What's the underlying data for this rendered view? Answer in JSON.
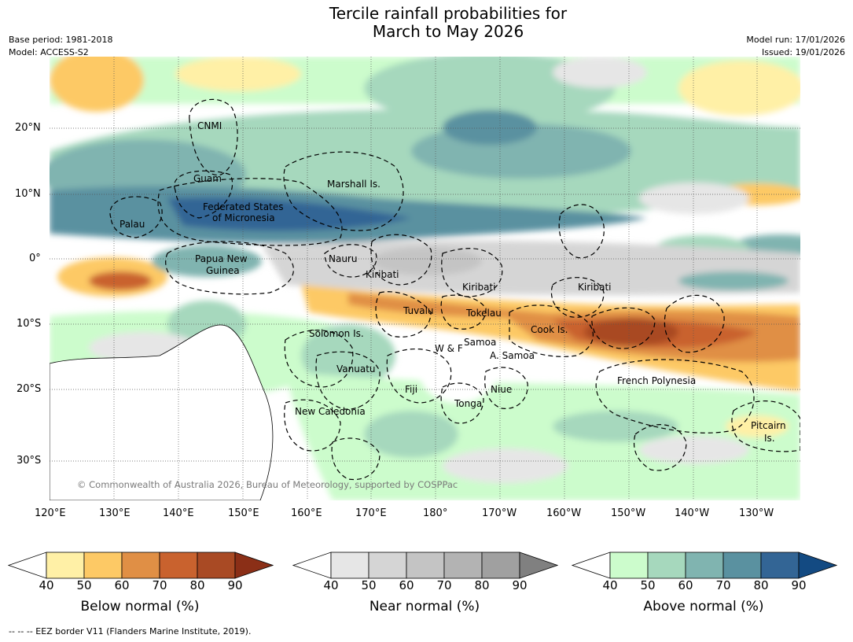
{
  "header": {
    "title_line1": "Tercile rainfall probabilities for",
    "title_line2": "March to May 2026",
    "base_period": "Base period: 1981-2018",
    "model": "Model: ACCESS-S2",
    "model_run": "Model run: 17/01/2026",
    "issued": "Issued: 19/01/2026"
  },
  "map": {
    "lat_labels": [
      "20°N",
      "10°N",
      "0°",
      "10°S",
      "20°S",
      "30°S"
    ],
    "lon_labels": [
      "120°E",
      "130°E",
      "140°E",
      "150°E",
      "160°E",
      "170°E",
      "180°",
      "170°W",
      "160°W",
      "150°W",
      "140°W",
      "130°W"
    ],
    "places": [
      "CNMI",
      "Guam",
      "Marshall Is.",
      "Palau",
      "Federated States",
      "of Micronesia",
      "Papua New",
      "Guinea",
      "Nauru",
      "Kiribati",
      "Kiribati",
      "Kiribati",
      "Tuvalu",
      "Tokelau",
      "Cook Is.",
      "Solomon Is.",
      "W & F",
      "Samoa",
      "A. Samoa",
      "Vanuatu",
      "Fiji",
      "Niue",
      "French Polynesia",
      "Tonga",
      "New Caledonia",
      "Pitcairn",
      "Is."
    ],
    "copyright": "© Commonwealth of Australia 2026, Bureau of Meteorology, supported by COSPPac"
  },
  "colorbars": [
    {
      "label": "Below normal (%)",
      "ticks": [
        "40",
        "50",
        "60",
        "70",
        "80",
        "90"
      ],
      "colors": [
        "#ffffff",
        "#fff0a6",
        "#fdc965",
        "#e08f45",
        "#c9622e",
        "#a94a24",
        "#8b2f17"
      ]
    },
    {
      "label": "Near normal (%)",
      "ticks": [
        "40",
        "50",
        "60",
        "70",
        "80",
        "90"
      ],
      "colors": [
        "#ffffff",
        "#e6e6e6",
        "#d5d5d5",
        "#c4c4c4",
        "#b3b3b3",
        "#a0a0a0",
        "#808080"
      ]
    },
    {
      "label": "Above normal (%)",
      "ticks": [
        "40",
        "50",
        "60",
        "70",
        "80",
        "90"
      ],
      "colors": [
        "#ffffff",
        "#ccfccc",
        "#a6d8bd",
        "#80b4b0",
        "#5a91a0",
        "#336595",
        "#134a82"
      ]
    }
  ],
  "footnote": "-- -- -- EEZ border V11 (Flanders Marine Institute, 2019)."
}
